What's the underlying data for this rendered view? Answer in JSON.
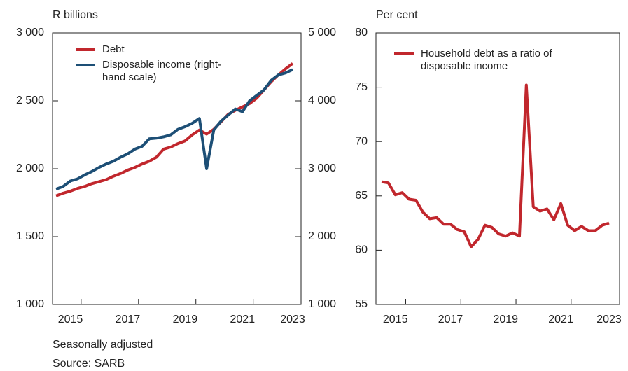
{
  "chart_data": [
    {
      "type": "line",
      "y_label": "R billions",
      "categories": [
        null,
        null,
        "2015",
        null,
        null,
        null,
        null,
        null,
        null,
        null,
        "2017",
        null,
        null,
        null,
        null,
        null,
        null,
        null,
        "2019",
        null,
        null,
        null,
        null,
        null,
        null,
        null,
        "2021",
        null,
        null,
        null,
        null,
        null,
        null,
        "2023"
      ],
      "series": [
        {
          "name": "Debt",
          "color": "#c1272d",
          "values": [
            1800,
            1820,
            1835,
            1855,
            1870,
            1890,
            1905,
            1920,
            1945,
            1965,
            1990,
            2010,
            2035,
            2055,
            2085,
            2145,
            2160,
            2185,
            2205,
            2250,
            2285,
            2255,
            2290,
            2345,
            2400,
            2430,
            2455,
            2480,
            2520,
            2580,
            2640,
            2690,
            2735,
            2775
          ]
        },
        {
          "name": "Disposable income (right-hand scale)",
          "color": "#1d4f76",
          "axis": "y2",
          "values": [
            2700,
            2740,
            2820,
            2850,
            2910,
            2960,
            3020,
            3070,
            3110,
            3170,
            3220,
            3290,
            3330,
            3440,
            3450,
            3470,
            3500,
            3580,
            3620,
            3670,
            3740,
            3000,
            3570,
            3700,
            3790,
            3880,
            3840,
            4000,
            4080,
            4160,
            4300,
            4380,
            4410,
            4460
          ]
        }
      ],
      "ylim": [
        1000,
        3000
      ],
      "yticks": [
        {
          "value": 1000,
          "label": "1 000"
        },
        {
          "value": 1500,
          "label": "1 500"
        },
        {
          "value": 2000,
          "label": "2 000"
        },
        {
          "value": 2500,
          "label": "2 500"
        },
        {
          "value": 3000,
          "label": "3 000"
        }
      ],
      "y2lim": [
        1000,
        5000
      ],
      "y2ticks": [
        {
          "value": 1000,
          "label": "1 000"
        },
        {
          "value": 2000,
          "label": "2 000"
        },
        {
          "value": 3000,
          "label": "3 000"
        },
        {
          "value": 4000,
          "label": "4 000"
        },
        {
          "value": 5000,
          "label": "5 000"
        }
      ]
    },
    {
      "type": "line",
      "y_label": "Per cent",
      "categories": [
        null,
        null,
        "2015",
        null,
        null,
        null,
        null,
        null,
        null,
        null,
        "2017",
        null,
        null,
        null,
        null,
        null,
        null,
        null,
        "2019",
        null,
        null,
        null,
        null,
        null,
        null,
        null,
        "2021",
        null,
        null,
        null,
        null,
        null,
        null,
        "2023"
      ],
      "series": [
        {
          "name": "Household debt as a ratio of disposable income",
          "color": "#c1272d",
          "values": [
            66.3,
            66.2,
            65.1,
            65.3,
            64.7,
            64.6,
            63.5,
            62.9,
            63.0,
            62.4,
            62.4,
            61.9,
            61.7,
            60.3,
            61.0,
            62.3,
            62.1,
            61.5,
            61.3,
            61.6,
            61.3,
            75.2,
            64.0,
            63.6,
            63.8,
            62.8,
            64.3,
            62.3,
            61.8,
            62.2,
            61.8,
            61.8,
            62.3,
            62.5
          ]
        }
      ],
      "ylim": [
        55,
        80
      ],
      "yticks": [
        55,
        60,
        65,
        70,
        75,
        80
      ]
    }
  ],
  "notes": [
    "Seasonally adjusted",
    "Source: SARB"
  ]
}
